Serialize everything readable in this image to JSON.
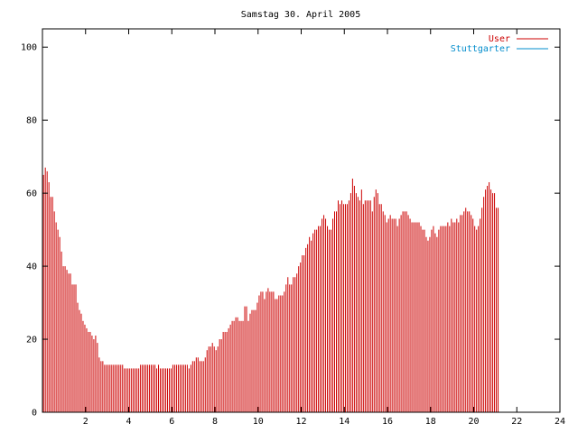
{
  "chart_data": {
    "type": "bar",
    "title": "Samstag 30. April 2005",
    "xlabel": "",
    "ylabel": "",
    "xlim": [
      0,
      24
    ],
    "ylim": [
      0,
      105
    ],
    "xticks": [
      2,
      4,
      6,
      8,
      10,
      12,
      14,
      16,
      18,
      20,
      22,
      24
    ],
    "yticks": [
      0,
      20,
      40,
      60,
      80,
      100
    ],
    "grid": false,
    "legend_position": "top-right",
    "x_step_hours": 0.08333,
    "series": [
      {
        "name": "User",
        "color": "#cc0000",
        "values": [
          65,
          67,
          66,
          63,
          59,
          59,
          55,
          52,
          50,
          48,
          44,
          40,
          40,
          39,
          38,
          38,
          35,
          35,
          35,
          30,
          28,
          27,
          25,
          24,
          23,
          22,
          22,
          21,
          20,
          21,
          19,
          15,
          14,
          14,
          13,
          13,
          13,
          13,
          13,
          13,
          13,
          13,
          13,
          13,
          13,
          12,
          12,
          12,
          12,
          12,
          12,
          12,
          12,
          12,
          13,
          13,
          13,
          13,
          13,
          13,
          13,
          13,
          13,
          12,
          13,
          12,
          12,
          12,
          12,
          12,
          12,
          12,
          13,
          13,
          13,
          13,
          13,
          13,
          13,
          13,
          13,
          12,
          13,
          14,
          14,
          15,
          15,
          14,
          14,
          14,
          15,
          17,
          18,
          18,
          19,
          18,
          17,
          18,
          20,
          20,
          22,
          22,
          22,
          23,
          24,
          25,
          25,
          26,
          26,
          25,
          25,
          25,
          29,
          29,
          25,
          27,
          28,
          28,
          28,
          30,
          32,
          33,
          33,
          31,
          33,
          34,
          33,
          33,
          33,
          31,
          31,
          32,
          32,
          32,
          33,
          35,
          37,
          35,
          35,
          37,
          37,
          38,
          40,
          41,
          43,
          43,
          45,
          46,
          48,
          47,
          49,
          50,
          50,
          51,
          51,
          53,
          54,
          53,
          51,
          50,
          50,
          53,
          55,
          55,
          58,
          57,
          58,
          57,
          57,
          57,
          58,
          60,
          64,
          62,
          60,
          59,
          58,
          61,
          57,
          58,
          58,
          58,
          58,
          55,
          59,
          61,
          60,
          57,
          57,
          55,
          54,
          52,
          53,
          54,
          53,
          53,
          53,
          51,
          53,
          54,
          55,
          55,
          55,
          54,
          53,
          52,
          52,
          52,
          52,
          52,
          51,
          50,
          50,
          48,
          47,
          48,
          50,
          51,
          49,
          48,
          50,
          51,
          51,
          51,
          51,
          52,
          51,
          53,
          52,
          52,
          53,
          52,
          54,
          54,
          55,
          56,
          55,
          55,
          54,
          53,
          51,
          50,
          51,
          53,
          56,
          59,
          61,
          62,
          63,
          61,
          60,
          60,
          56,
          56
        ]
      },
      {
        "name": "Stuttgarter",
        "color": "#008ccc",
        "values": []
      }
    ]
  }
}
